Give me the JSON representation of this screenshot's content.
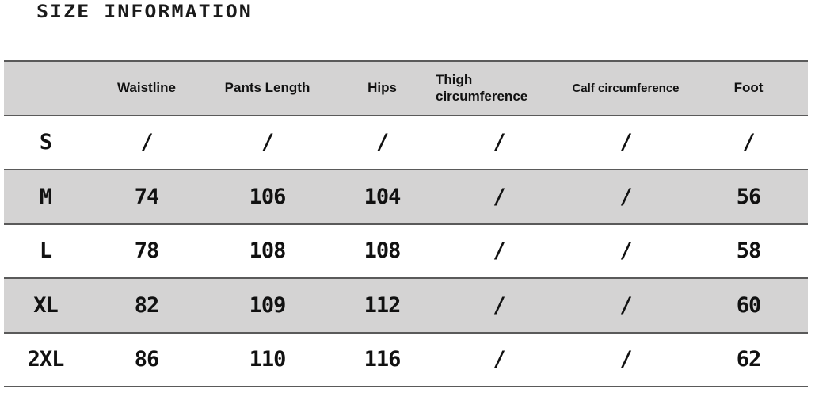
{
  "title": "SIZE INFORMATION",
  "columns": [
    "",
    "Waistline",
    "Pants Length",
    "Hips",
    "Thigh circumference",
    "Calf circumference",
    "Foot"
  ],
  "thigh_lines": [
    "Thigh",
    "circumference"
  ],
  "rows": [
    [
      "S",
      "/",
      "/",
      "/",
      "/",
      "/",
      "/"
    ],
    [
      "M",
      "74",
      "106",
      "104",
      "/",
      "/",
      "56"
    ],
    [
      "L",
      "78",
      "108",
      "108",
      "/",
      "/",
      "58"
    ],
    [
      "XL",
      "82",
      "109",
      "112",
      "/",
      "/",
      "60"
    ],
    [
      "2XL",
      "86",
      "110",
      "116",
      "/",
      "/",
      "62"
    ]
  ]
}
